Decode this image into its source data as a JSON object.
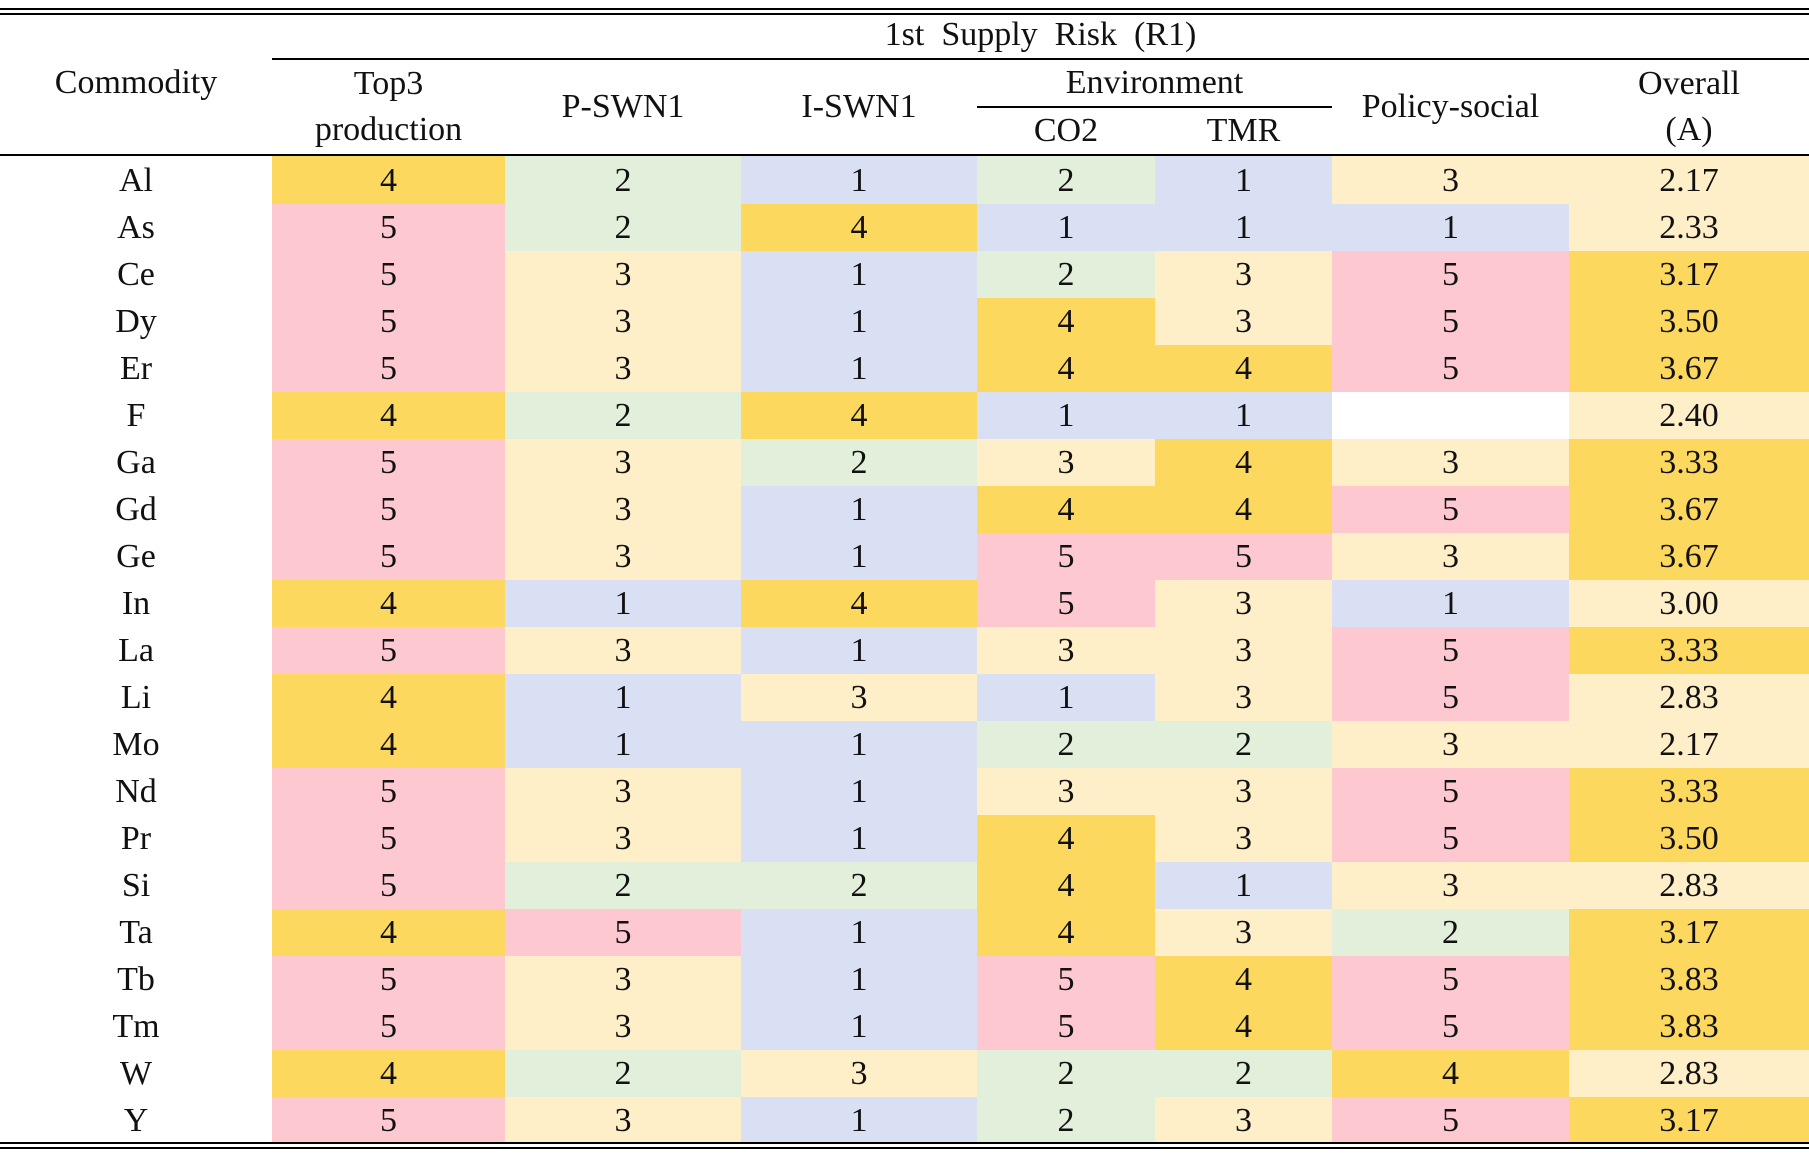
{
  "header": {
    "commodity": "Commodity",
    "group": "1st  Supply  Risk  (R1)",
    "top3_line1": "Top3",
    "top3_line2": "production",
    "pswn": "P-SWN1",
    "iswn": "I-SWN1",
    "environment": "Environment",
    "co2": "CO2",
    "tmr": "TMR",
    "policy": "Policy-social",
    "overall_line1": "Overall",
    "overall_line2": "(A)"
  },
  "colors": {
    "score_4": "#fdd85f",
    "score_2": "#e2efda",
    "score_3": "#ffefc9",
    "score_5": "#fec8d1",
    "score_1": "#d9e0f4"
  },
  "rows": [
    {
      "c": "Al",
      "v": [
        "4",
        "2",
        "1",
        "2",
        "1",
        "3",
        "2.17"
      ],
      "k": [
        1,
        2,
        5,
        2,
        5,
        3,
        3
      ]
    },
    {
      "c": "As",
      "v": [
        "5",
        "2",
        "4",
        "1",
        "1",
        "1",
        "2.33"
      ],
      "k": [
        4,
        2,
        1,
        5,
        5,
        5,
        3
      ]
    },
    {
      "c": "Ce",
      "v": [
        "5",
        "3",
        "1",
        "2",
        "3",
        "5",
        "3.17"
      ],
      "k": [
        4,
        3,
        5,
        2,
        3,
        4,
        1
      ]
    },
    {
      "c": "Dy",
      "v": [
        "5",
        "3",
        "1",
        "4",
        "3",
        "5",
        "3.50"
      ],
      "k": [
        4,
        3,
        5,
        1,
        3,
        4,
        1
      ]
    },
    {
      "c": "Er",
      "v": [
        "5",
        "3",
        "1",
        "4",
        "4",
        "5",
        "3.67"
      ],
      "k": [
        4,
        3,
        5,
        1,
        1,
        4,
        1
      ]
    },
    {
      "c": "F",
      "v": [
        "4",
        "2",
        "4",
        "1",
        "1",
        "",
        "2.40"
      ],
      "k": [
        1,
        2,
        1,
        5,
        5,
        0,
        3
      ]
    },
    {
      "c": "Ga",
      "v": [
        "5",
        "3",
        "2",
        "3",
        "4",
        "3",
        "3.33"
      ],
      "k": [
        4,
        3,
        2,
        3,
        1,
        3,
        1
      ]
    },
    {
      "c": "Gd",
      "v": [
        "5",
        "3",
        "1",
        "4",
        "4",
        "5",
        "3.67"
      ],
      "k": [
        4,
        3,
        5,
        1,
        1,
        4,
        1
      ]
    },
    {
      "c": "Ge",
      "v": [
        "5",
        "3",
        "1",
        "5",
        "5",
        "3",
        "3.67"
      ],
      "k": [
        4,
        3,
        5,
        4,
        4,
        3,
        1
      ]
    },
    {
      "c": "In",
      "v": [
        "4",
        "1",
        "4",
        "5",
        "3",
        "1",
        "3.00"
      ],
      "k": [
        1,
        5,
        1,
        4,
        3,
        5,
        3
      ]
    },
    {
      "c": "La",
      "v": [
        "5",
        "3",
        "1",
        "3",
        "3",
        "5",
        "3.33"
      ],
      "k": [
        4,
        3,
        5,
        3,
        3,
        4,
        1
      ]
    },
    {
      "c": "Li",
      "v": [
        "4",
        "1",
        "3",
        "1",
        "3",
        "5",
        "2.83"
      ],
      "k": [
        1,
        5,
        3,
        5,
        3,
        4,
        3
      ]
    },
    {
      "c": "Mo",
      "v": [
        "4",
        "1",
        "1",
        "2",
        "2",
        "3",
        "2.17"
      ],
      "k": [
        1,
        5,
        5,
        2,
        2,
        3,
        3
      ]
    },
    {
      "c": "Nd",
      "v": [
        "5",
        "3",
        "1",
        "3",
        "3",
        "5",
        "3.33"
      ],
      "k": [
        4,
        3,
        5,
        3,
        3,
        4,
        1
      ]
    },
    {
      "c": "Pr",
      "v": [
        "5",
        "3",
        "1",
        "4",
        "3",
        "5",
        "3.50"
      ],
      "k": [
        4,
        3,
        5,
        1,
        3,
        4,
        1
      ]
    },
    {
      "c": "Si",
      "v": [
        "5",
        "2",
        "2",
        "4",
        "1",
        "3",
        "2.83"
      ],
      "k": [
        4,
        2,
        2,
        1,
        5,
        3,
        3
      ]
    },
    {
      "c": "Ta",
      "v": [
        "4",
        "5",
        "1",
        "4",
        "3",
        "2",
        "3.17"
      ],
      "k": [
        1,
        4,
        5,
        1,
        3,
        2,
        1
      ]
    },
    {
      "c": "Tb",
      "v": [
        "5",
        "3",
        "1",
        "5",
        "4",
        "5",
        "3.83"
      ],
      "k": [
        4,
        3,
        5,
        4,
        1,
        4,
        1
      ]
    },
    {
      "c": "Tm",
      "v": [
        "5",
        "3",
        "1",
        "5",
        "4",
        "5",
        "3.83"
      ],
      "k": [
        4,
        3,
        5,
        4,
        1,
        4,
        1
      ]
    },
    {
      "c": "W",
      "v": [
        "4",
        "2",
        "3",
        "2",
        "2",
        "4",
        "2.83"
      ],
      "k": [
        1,
        2,
        3,
        2,
        2,
        1,
        3
      ]
    },
    {
      "c": "Y",
      "v": [
        "5",
        "3",
        "1",
        "2",
        "3",
        "5",
        "3.17"
      ],
      "k": [
        4,
        3,
        5,
        2,
        3,
        4,
        1
      ]
    }
  ]
}
